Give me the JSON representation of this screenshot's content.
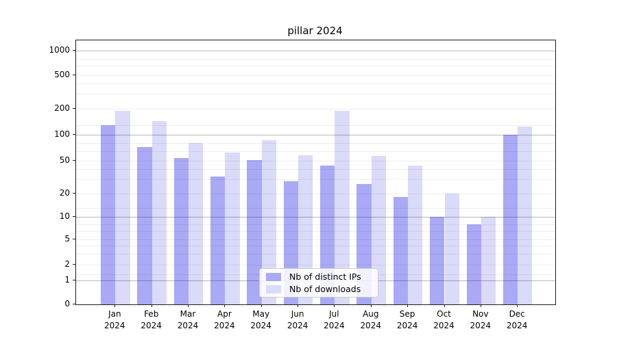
{
  "title": "pillar 2024",
  "legend": {
    "items": [
      {
        "label": "Nb of distinct IPs",
        "color": "#a9a9f6"
      },
      {
        "label": "Nb of downloads",
        "color": "#dadaf9"
      }
    ]
  },
  "x_axis": {
    "year": "2024",
    "months": [
      "Jan",
      "Feb",
      "Mar",
      "Apr",
      "May",
      "Jun",
      "Jul",
      "Aug",
      "Sep",
      "Oct",
      "Nov",
      "Dec"
    ]
  },
  "y_axis": {
    "tick_labels": [
      "0",
      "1",
      "2",
      "5",
      "10",
      "20",
      "50",
      "100",
      "200",
      "500",
      "1000"
    ]
  },
  "chart_data": {
    "type": "bar",
    "title": "pillar 2024",
    "categories": [
      "Jan 2024",
      "Feb 2024",
      "Mar 2024",
      "Apr 2024",
      "May 2024",
      "Jun 2024",
      "Jul 2024",
      "Aug 2024",
      "Sep 2024",
      "Oct 2024",
      "Nov 2024",
      "Dec 2024"
    ],
    "series": [
      {
        "name": "Nb of distinct IPs",
        "color": "#a9a9f6",
        "values": [
          130,
          72,
          54,
          32,
          51,
          28,
          44,
          26,
          18,
          10,
          8,
          100
        ]
      },
      {
        "name": "Nb of downloads",
        "color": "#dadaf9",
        "values": [
          190,
          145,
          80,
          62,
          86,
          58,
          190,
          57,
          44,
          20,
          10,
          125
        ]
      }
    ],
    "ylabel": "",
    "xlabel": "",
    "yscale": "symlog",
    "yticks": [
      0,
      1,
      2,
      5,
      10,
      20,
      50,
      100,
      200,
      500,
      1000
    ],
    "ylim": [
      0,
      1300
    ],
    "grid": "horizontal major+minor, drawn over bars",
    "legend_position": "lower center inside plot"
  }
}
